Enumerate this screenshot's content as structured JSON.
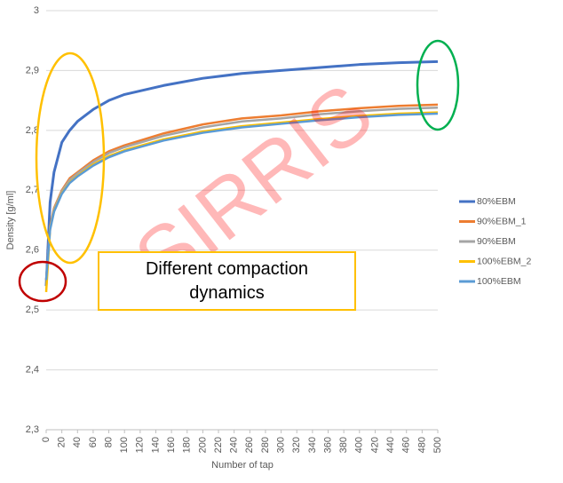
{
  "chart_data": {
    "type": "line",
    "ylabel": "Density [g/ml]",
    "xlabel": "Number of tap",
    "x": [
      0,
      5,
      10,
      20,
      30,
      40,
      60,
      80,
      100,
      150,
      200,
      250,
      300,
      350,
      400,
      450,
      500
    ],
    "series": [
      {
        "name": "80%EBM",
        "color": "#4472c4",
        "values": [
          2.54,
          2.68,
          2.73,
          2.78,
          2.8,
          2.815,
          2.835,
          2.85,
          2.86,
          2.875,
          2.887,
          2.895,
          2.9,
          2.905,
          2.91,
          2.913,
          2.915
        ]
      },
      {
        "name": "90%EBM_1",
        "color": "#ed7d31",
        "values": [
          2.55,
          2.64,
          2.67,
          2.7,
          2.72,
          2.73,
          2.75,
          2.765,
          2.775,
          2.795,
          2.81,
          2.82,
          2.825,
          2.832,
          2.837,
          2.841,
          2.843
        ]
      },
      {
        "name": "90%EBM",
        "color": "#a5a5a5",
        "values": [
          2.55,
          2.638,
          2.668,
          2.698,
          2.717,
          2.728,
          2.747,
          2.762,
          2.772,
          2.791,
          2.805,
          2.815,
          2.82,
          2.827,
          2.832,
          2.836,
          2.838
        ]
      },
      {
        "name": "100%EBM_2",
        "color": "#ffc000",
        "values": [
          2.53,
          2.635,
          2.665,
          2.695,
          2.713,
          2.724,
          2.743,
          2.757,
          2.767,
          2.785,
          2.798,
          2.807,
          2.813,
          2.819,
          2.824,
          2.828,
          2.83
        ]
      },
      {
        "name": "100%EBM",
        "color": "#5b9bd5",
        "values": [
          2.55,
          2.634,
          2.664,
          2.694,
          2.712,
          2.723,
          2.741,
          2.755,
          2.765,
          2.783,
          2.796,
          2.805,
          2.811,
          2.817,
          2.822,
          2.826,
          2.828
        ]
      }
    ],
    "xlim": [
      0,
      500
    ],
    "xticks": [
      0,
      20,
      40,
      60,
      80,
      100,
      120,
      140,
      160,
      180,
      200,
      220,
      240,
      260,
      280,
      300,
      320,
      340,
      360,
      380,
      400,
      420,
      440,
      460,
      480,
      500
    ],
    "ylim": [
      2.3,
      3
    ],
    "yticks": [
      {
        "value": 2.3,
        "label": "2,3"
      },
      {
        "value": 2.4,
        "label": "2,4"
      },
      {
        "value": 2.5,
        "label": "2,5"
      },
      {
        "value": 2.6,
        "label": "2,6"
      },
      {
        "value": 2.7,
        "label": "2,7"
      },
      {
        "value": 2.8,
        "label": "2,8"
      },
      {
        "value": 2.9,
        "label": "2,9"
      },
      3
    ],
    "grid": true,
    "legend": "right",
    "annotations": [
      "Different compaction dynamics",
      "SIRRIS"
    ]
  }
}
